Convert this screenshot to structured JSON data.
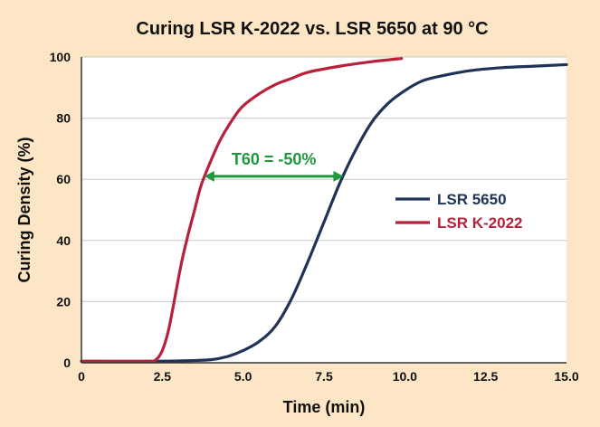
{
  "chart_data": {
    "type": "line",
    "title": "Curing LSR K-2022 vs. LSR 5650 at 90 °C",
    "xlabel": "Time (min)",
    "ylabel": "Curing Density (%)",
    "xlim": [
      0,
      15
    ],
    "ylim": [
      0,
      100
    ],
    "x_ticks": [
      "0",
      "2.5",
      "5.0",
      "7.5",
      "10.0",
      "12.5",
      "15.0"
    ],
    "x_tick_values": [
      0,
      2.5,
      5.0,
      7.5,
      10.0,
      12.5,
      15.0
    ],
    "y_ticks": [
      "0",
      "20",
      "40",
      "60",
      "80",
      "100"
    ],
    "y_tick_values": [
      0,
      20,
      40,
      60,
      80,
      100
    ],
    "grid": "horizontal",
    "legend_position": "right",
    "series": [
      {
        "name": "LSR 5650",
        "color": "#1f3358",
        "x": [
          0,
          2.0,
          3.0,
          4.0,
          4.5,
          5.0,
          5.5,
          6.0,
          6.5,
          7.0,
          7.5,
          8.0,
          8.5,
          9.0,
          9.5,
          10.0,
          10.5,
          11.0,
          12.0,
          13.0,
          14.0,
          15.0
        ],
        "y": [
          0.5,
          0.5,
          0.6,
          1,
          2,
          4,
          7,
          12,
          21,
          33,
          46,
          59,
          70,
          79,
          85,
          89,
          92,
          93.5,
          95.5,
          96.5,
          97,
          97.5
        ]
      },
      {
        "name": "LSR K-2022",
        "color": "#b8213a",
        "x": [
          0,
          2.0,
          2.3,
          2.5,
          2.7,
          2.9,
          3.1,
          3.3,
          3.5,
          3.7,
          4.0,
          4.3,
          4.7,
          5.0,
          5.5,
          6.0,
          6.5,
          7.0,
          8.0,
          9.0,
          9.9
        ],
        "y": [
          0.5,
          0.5,
          1,
          4,
          11,
          22,
          33,
          42,
          50,
          58,
          66,
          73,
          80,
          84,
          88,
          91,
          93,
          95,
          97,
          98.5,
          99.5
        ]
      }
    ],
    "annotation": {
      "text": "T60 = -50%",
      "color": "#1e9a3c",
      "arrow_from": [
        3.8,
        61
      ],
      "arrow_to": [
        8.1,
        61
      ]
    }
  }
}
